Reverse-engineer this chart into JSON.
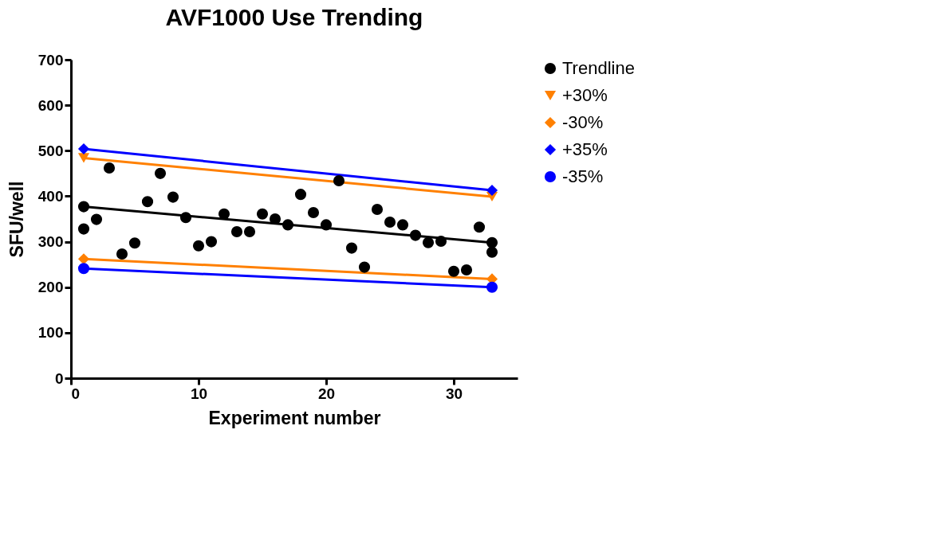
{
  "chart_data": {
    "type": "scatter",
    "title": "AVF1000 Use Trending",
    "xlabel": "Experiment number",
    "ylabel": "SFU/well",
    "xlim": [
      0,
      35
    ],
    "xticks": [
      0,
      10,
      20,
      30
    ],
    "ylim": [
      0,
      700
    ],
    "yticks": [
      0,
      100,
      200,
      300,
      400,
      500,
      600,
      700
    ],
    "grid": false,
    "legend": "right",
    "series": [
      {
        "color": "#000000",
        "marker": "circle",
        "x": [
          1,
          2,
          3,
          4,
          5,
          6,
          7,
          8,
          9,
          10,
          11,
          12,
          13,
          14,
          15,
          16,
          17,
          18,
          19,
          20,
          21,
          22,
          23,
          24,
          25,
          26,
          27,
          28,
          29,
          30,
          31,
          32,
          33
        ],
        "values": [
          328,
          349,
          462,
          273,
          297,
          388,
          450,
          398,
          353,
          291,
          300,
          361,
          322,
          322,
          361,
          350,
          337,
          404,
          364,
          337,
          434,
          286,
          244,
          371,
          343,
          337,
          314,
          298,
          301,
          235,
          238,
          332,
          277
        ]
      },
      {
        "name": "Trendline",
        "type": "line",
        "color": "#000000",
        "marker": "circle",
        "x": [
          1,
          33
        ],
        "values": [
          377,
          298
        ]
      },
      {
        "name": "+30%",
        "type": "line",
        "color": "#ff8000",
        "marker": "triangle",
        "x": [
          1,
          33
        ],
        "values": [
          484,
          399
        ]
      },
      {
        "name": "-30%",
        "type": "line",
        "color": "#ff8000",
        "marker": "diamond",
        "x": [
          1,
          33
        ],
        "values": [
          262,
          218
        ]
      },
      {
        "name": "+35%",
        "type": "line",
        "color": "#0000ff",
        "marker": "diamond",
        "x": [
          1,
          33
        ],
        "values": [
          504,
          413
        ]
      },
      {
        "name": "-35%",
        "type": "line",
        "color": "#0000ff",
        "marker": "circle",
        "x": [
          1,
          33
        ],
        "values": [
          241,
          200
        ]
      }
    ]
  }
}
